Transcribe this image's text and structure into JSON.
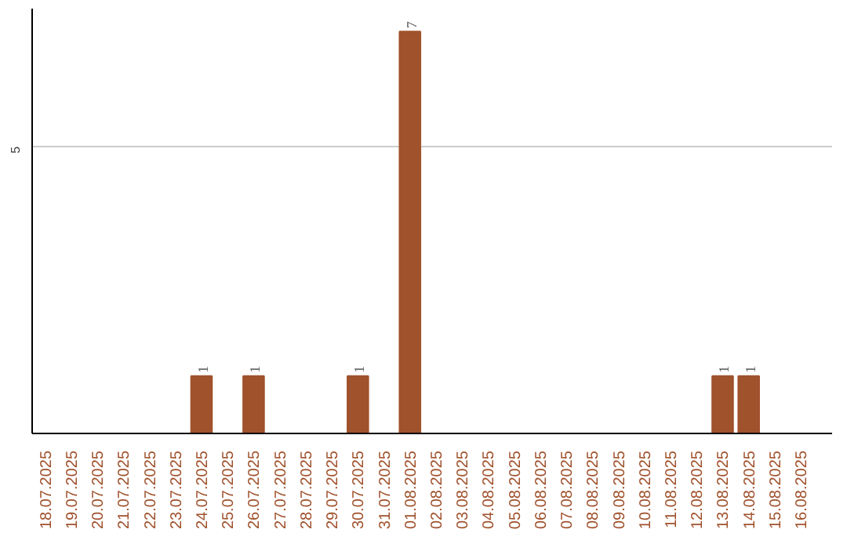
{
  "chart_data": {
    "type": "bar",
    "categories": [
      "18.07.2025",
      "19.07.2025",
      "20.07.2025",
      "21.07.2025",
      "22.07.2025",
      "23.07.2025",
      "24.07.2025",
      "25.07.2025",
      "26.07.2025",
      "27.07.2025",
      "28.07.2025",
      "29.07.2025",
      "30.07.2025",
      "31.07.2025",
      "01.08.2025",
      "02.08.2025",
      "03.08.2025",
      "04.08.2025",
      "05.08.2025",
      "06.08.2025",
      "07.08.2025",
      "08.08.2025",
      "09.08.2025",
      "10.08.2025",
      "11.08.2025",
      "12.08.2025",
      "13.08.2025",
      "14.08.2025",
      "15.08.2025",
      "16.08.2025"
    ],
    "values": [
      0,
      0,
      0,
      0,
      0,
      0,
      1,
      0,
      1,
      0,
      0,
      0,
      1,
      0,
      7,
      0,
      0,
      0,
      0,
      0,
      0,
      0,
      0,
      0,
      0,
      0,
      1,
      1,
      0,
      0
    ],
    "color": "#a0522d",
    "value_labels": [
      null,
      null,
      null,
      null,
      null,
      null,
      "1",
      null,
      "1",
      null,
      null,
      null,
      "1",
      null,
      "7",
      null,
      null,
      null,
      null,
      null,
      null,
      null,
      null,
      null,
      null,
      null,
      "1",
      "1",
      null,
      null
    ],
    "ylim": [
      0,
      7.4
    ],
    "yticks": [
      5
    ],
    "grid": "y"
  }
}
